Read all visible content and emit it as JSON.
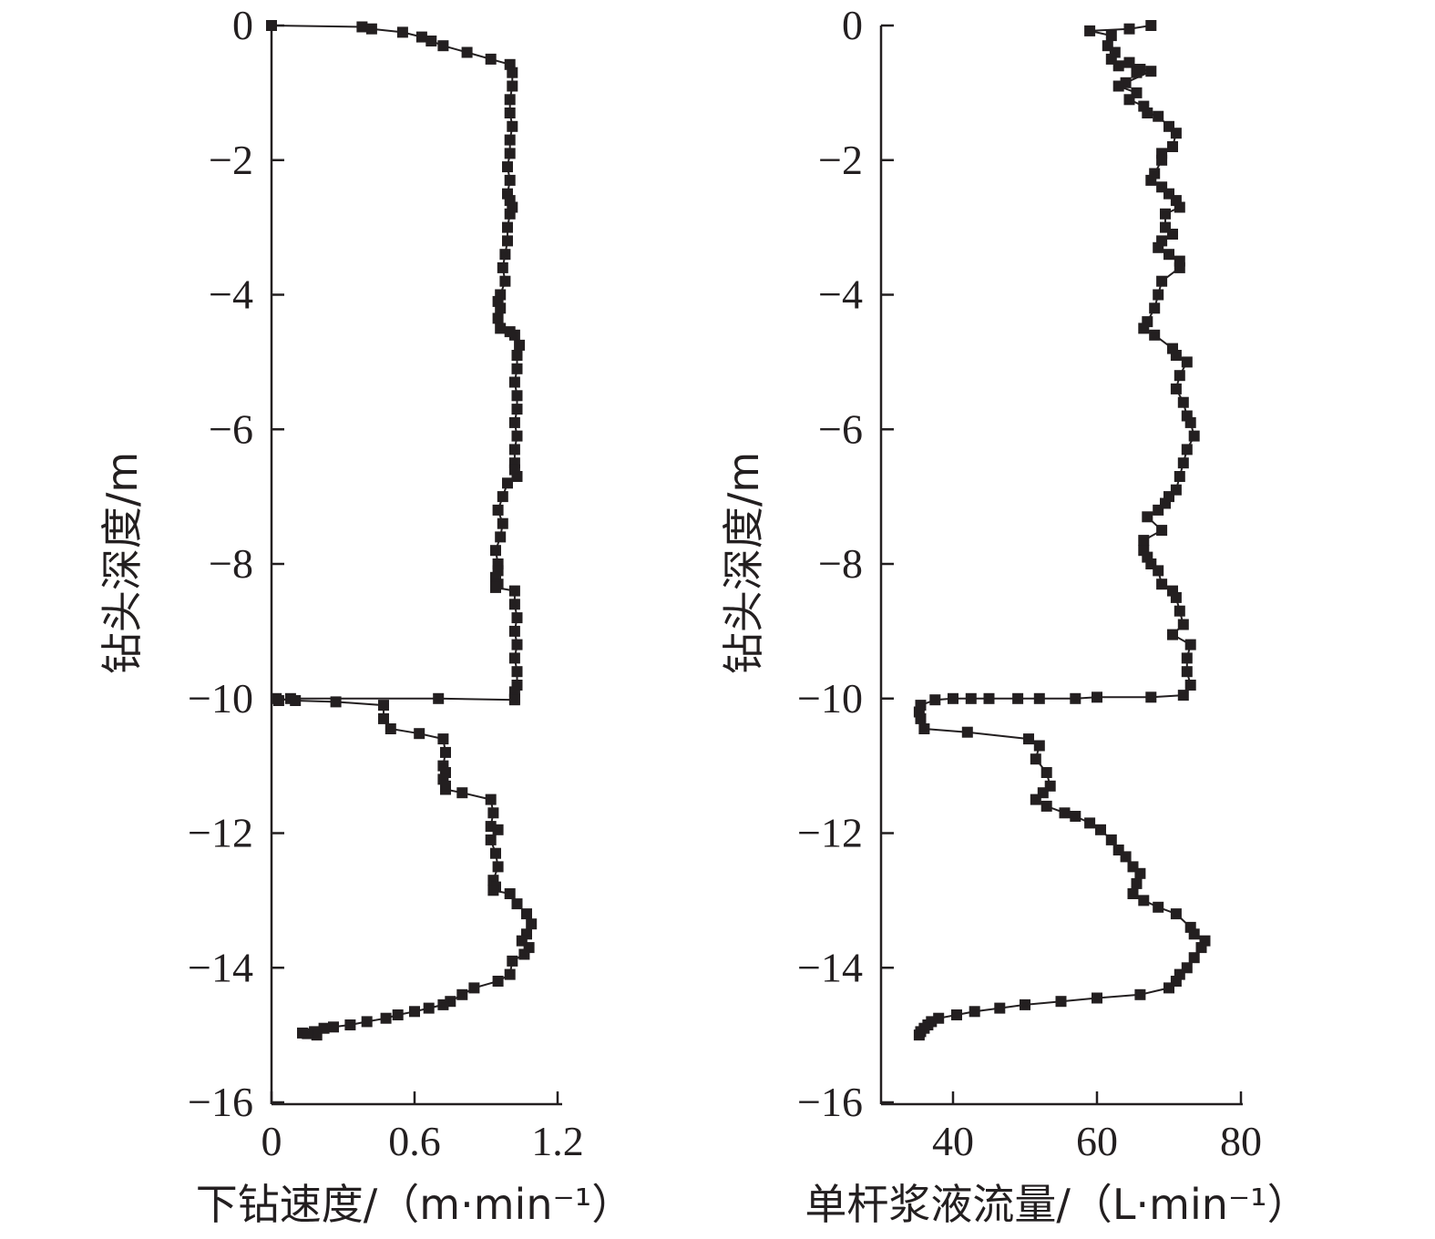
{
  "chart_data": [
    {
      "type": "line",
      "name": "left-panel",
      "xlabel": "下钻速度/（m·min⁻¹）",
      "ylabel": "钻头深度/m",
      "xlim": [
        0,
        1.2
      ],
      "ylim": [
        -16,
        0
      ],
      "xticks": [
        0,
        0.6,
        1.2
      ],
      "xtick_labels": [
        "0",
        "0.6",
        "1.2"
      ],
      "yticks": [
        0,
        -2,
        -4,
        -6,
        -8,
        -10,
        -12,
        -14,
        -16
      ],
      "ytick_labels": [
        "0",
        "−2",
        "−4",
        "−6",
        "−8",
        "−10",
        "−12",
        "−14",
        "−16"
      ],
      "grid": false,
      "marker": "square",
      "series": [
        {
          "x": [
            0,
            0.38,
            0.42,
            0.55,
            0.63,
            0.67,
            0.72,
            0.82,
            0.92,
            1.0,
            1.01,
            1.01,
            1.0,
            1.0,
            1.01,
            1.0,
            1.0,
            0.99,
            1.0,
            0.99,
            1.0,
            1.01,
            1.0,
            0.99,
            0.99,
            0.98,
            0.97,
            0.98,
            0.96,
            0.95,
            0.96,
            0.95,
            0.96,
            1.0,
            1.02,
            1.04,
            1.03,
            1.03,
            1.02,
            1.03,
            1.03,
            1.02,
            1.03,
            1.02,
            1.02,
            1.02,
            1.03,
            0.99,
            0.97,
            0.95,
            0.97,
            0.96,
            0.94,
            0.95,
            0.95,
            0.94,
            0.95,
            0.94,
            1.02,
            1.02,
            1.03,
            1.02,
            1.03,
            1.02,
            1.03,
            1.03,
            1.02,
            1.02,
            1.02,
            0.7,
            0.08,
            0.03,
            0.02,
            0.1,
            0.27,
            0.47,
            0.47,
            0.5,
            0.62,
            0.72,
            0.73,
            0.72,
            0.73,
            0.72,
            0.73,
            0.73,
            0.8,
            0.92,
            0.93,
            0.92,
            0.95,
            0.92,
            0.94,
            0.95,
            0.93,
            0.94,
            0.93,
            1.0,
            1.03,
            1.07,
            1.09,
            1.07,
            1.05,
            1.08,
            1.06,
            1.01,
            1.0,
            0.95,
            0.85,
            0.8,
            0.75,
            0.72,
            0.66,
            0.6,
            0.53,
            0.48,
            0.4,
            0.33,
            0.26,
            0.22,
            0.18,
            0.13,
            0.19,
            0.15
          ],
          "y": [
            0,
            -0.02,
            -0.05,
            -0.1,
            -0.17,
            -0.23,
            -0.3,
            -0.4,
            -0.5,
            -0.58,
            -0.7,
            -0.9,
            -1.1,
            -1.3,
            -1.5,
            -1.7,
            -1.9,
            -2.1,
            -2.3,
            -2.5,
            -2.6,
            -2.7,
            -2.8,
            -3.0,
            -3.2,
            -3.4,
            -3.6,
            -3.8,
            -4.0,
            -4.1,
            -4.2,
            -4.35,
            -4.5,
            -4.55,
            -4.6,
            -4.75,
            -4.9,
            -5.1,
            -5.3,
            -5.5,
            -5.7,
            -5.9,
            -6.1,
            -6.3,
            -6.5,
            -6.6,
            -6.7,
            -6.8,
            -7.0,
            -7.2,
            -7.4,
            -7.6,
            -7.8,
            -8.0,
            -8.1,
            -8.2,
            -8.3,
            -8.35,
            -8.4,
            -8.6,
            -8.8,
            -9.0,
            -9.2,
            -9.4,
            -9.6,
            -9.8,
            -9.9,
            -10.0,
            -10.02,
            -10.0,
            -10.0,
            -10.03,
            -10.0,
            -10.03,
            -10.05,
            -10.1,
            -10.3,
            -10.45,
            -10.52,
            -10.6,
            -10.8,
            -11.0,
            -11.1,
            -11.2,
            -11.3,
            -11.35,
            -11.4,
            -11.5,
            -11.7,
            -11.9,
            -11.95,
            -12.1,
            -12.3,
            -12.5,
            -12.7,
            -12.8,
            -12.85,
            -12.9,
            -13.05,
            -13.2,
            -13.35,
            -13.5,
            -13.6,
            -13.7,
            -13.8,
            -13.9,
            -14.1,
            -14.2,
            -14.3,
            -14.4,
            -14.5,
            -14.55,
            -14.6,
            -14.65,
            -14.7,
            -14.75,
            -14.8,
            -14.85,
            -14.88,
            -14.9,
            -14.95,
            -14.97,
            -15.0,
            -14.98
          ]
        }
      ]
    },
    {
      "type": "line",
      "name": "right-panel",
      "xlabel": "单杆浆液流量/（L·min⁻¹）",
      "ylabel": "钻头深度/m",
      "xlim": [
        30,
        80
      ],
      "ylim": [
        -16,
        0
      ],
      "xticks": [
        40,
        60,
        80
      ],
      "xtick_labels": [
        "40",
        "60",
        "80"
      ],
      "yticks": [
        0,
        -2,
        -4,
        -6,
        -8,
        -10,
        -12,
        -14,
        -16
      ],
      "ytick_labels": [
        "0",
        "−2",
        "−4",
        "−6",
        "−8",
        "−10",
        "−12",
        "−14",
        "−16"
      ],
      "grid": false,
      "marker": "square",
      "series": [
        {
          "x": [
            67.5,
            64.5,
            59.0,
            62.0,
            61.5,
            62.5,
            62.0,
            63.0,
            64.5,
            65.5,
            66.0,
            67.5,
            64.0,
            63.0,
            65.5,
            64.5,
            66.5,
            67.0,
            68.5,
            70.0,
            71.0,
            70.5,
            69.0,
            69.0,
            68.0,
            67.5,
            69.0,
            70.0,
            71.0,
            71.5,
            69.5,
            69.5,
            70.5,
            69.0,
            68.5,
            70.0,
            71.5,
            71.5,
            69.0,
            68.5,
            68.0,
            67.0,
            66.5,
            68.0,
            70.5,
            71.0,
            72.5,
            71.5,
            71.0,
            72.0,
            72.5,
            73.0,
            73.5,
            72.5,
            72.0,
            71.5,
            71.0,
            70.0,
            69.5,
            68.5,
            67.0,
            69.0,
            66.5,
            66.5,
            67.0,
            67.5,
            68.5,
            69.0,
            70.5,
            71.0,
            71.5,
            72.0,
            70.5,
            73.0,
            72.5,
            72.5,
            73.0,
            72.0,
            67.5,
            60.0,
            57.0,
            52.0,
            49.0,
            45.0,
            42.5,
            40.0,
            37.5,
            35.5,
            35.3,
            35.5,
            36.0,
            42.0,
            50.5,
            52.0,
            51.5,
            53.0,
            53.5,
            52.5,
            51.5,
            53.0,
            55.5,
            57.0,
            59.0,
            60.5,
            62.0,
            63.0,
            64.0,
            65.0,
            66.0,
            65.5,
            65.0,
            66.5,
            68.5,
            71.0,
            73.0,
            73.5,
            75.0,
            74.5,
            73.5,
            72.5,
            71.5,
            71.0,
            70.0,
            66.0,
            60.0,
            55.0,
            50.0,
            46.5,
            43.0,
            40.5,
            38.0,
            37.0,
            36.5,
            36.0,
            35.5,
            35.3
          ],
          "y": [
            0,
            -0.05,
            -0.08,
            -0.15,
            -0.3,
            -0.4,
            -0.5,
            -0.6,
            -0.55,
            -0.7,
            -0.65,
            -0.68,
            -0.85,
            -0.9,
            -1.0,
            -1.1,
            -1.2,
            -1.3,
            -1.35,
            -1.5,
            -1.6,
            -1.8,
            -1.9,
            -2.0,
            -2.2,
            -2.3,
            -2.4,
            -2.5,
            -2.6,
            -2.7,
            -2.8,
            -3.0,
            -3.1,
            -3.2,
            -3.3,
            -3.4,
            -3.5,
            -3.6,
            -3.8,
            -4.0,
            -4.2,
            -4.4,
            -4.5,
            -4.6,
            -4.8,
            -4.9,
            -5.0,
            -5.2,
            -5.4,
            -5.6,
            -5.8,
            -5.9,
            -6.1,
            -6.3,
            -6.5,
            -6.7,
            -6.9,
            -7.0,
            -7.1,
            -7.2,
            -7.3,
            -7.5,
            -7.65,
            -7.8,
            -7.9,
            -8.0,
            -8.1,
            -8.3,
            -8.4,
            -8.5,
            -8.7,
            -8.9,
            -9.05,
            -9.2,
            -9.4,
            -9.6,
            -9.8,
            -9.95,
            -9.98,
            -9.98,
            -10.0,
            -10.0,
            -10.0,
            -10.0,
            -10.0,
            -10.0,
            -10.02,
            -10.1,
            -10.2,
            -10.3,
            -10.45,
            -10.5,
            -10.6,
            -10.7,
            -10.9,
            -11.1,
            -11.3,
            -11.4,
            -11.5,
            -11.6,
            -11.7,
            -11.75,
            -11.85,
            -11.95,
            -12.1,
            -12.25,
            -12.35,
            -12.5,
            -12.6,
            -12.75,
            -12.9,
            -13.0,
            -13.1,
            -13.2,
            -13.4,
            -13.5,
            -13.6,
            -13.7,
            -13.85,
            -14.0,
            -14.1,
            -14.2,
            -14.3,
            -14.4,
            -14.45,
            -14.5,
            -14.55,
            -14.6,
            -14.65,
            -14.7,
            -14.75,
            -14.8,
            -14.85,
            -14.9,
            -14.95,
            -15.0
          ]
        }
      ]
    }
  ]
}
